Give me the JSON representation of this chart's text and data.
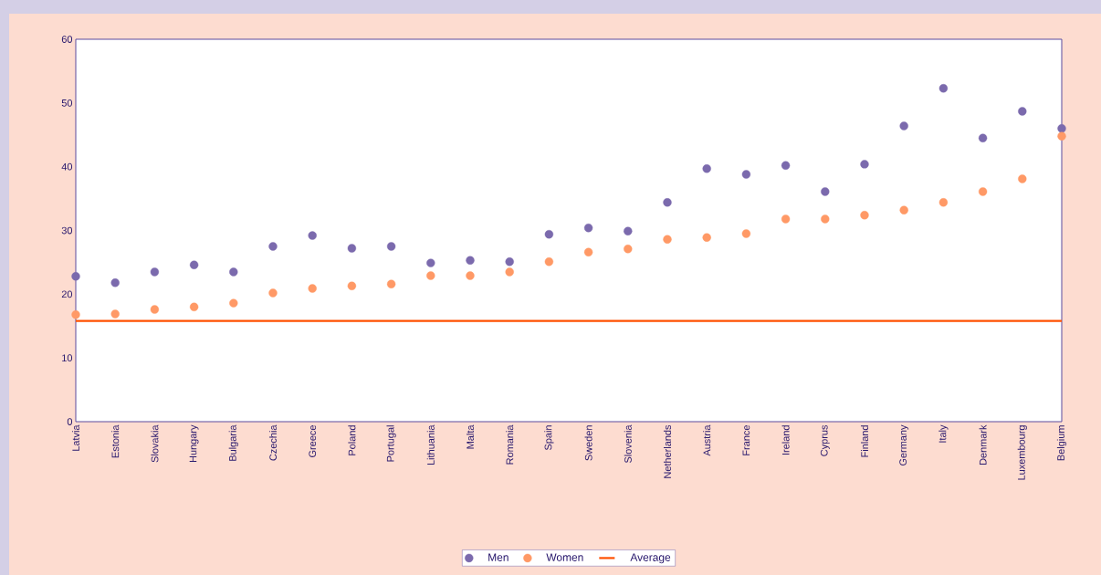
{
  "chart_data": {
    "type": "scatter",
    "categories": [
      "Latvia",
      "Estonia",
      "Slovakia",
      "Hungary",
      "Bulgaria",
      "Czechia",
      "Greece",
      "Poland",
      "Portugal",
      "Lithuania",
      "Malta",
      "Romania",
      "Spain",
      "Sweden",
      "Slovenia",
      "Netherlands",
      "Austria",
      "France",
      "Ireland",
      "Cyprus",
      "Finland",
      "Germany",
      "Italy",
      "Denmark",
      "Luxembourg",
      "Belgium"
    ],
    "series": [
      {
        "name": "Men",
        "color": "#7b6aad",
        "marker": "circle",
        "values": [
          22.8,
          21.8,
          23.5,
          24.6,
          23.5,
          27.5,
          29.2,
          27.2,
          27.5,
          24.9,
          25.3,
          25.1,
          29.4,
          30.4,
          29.9,
          34.4,
          39.7,
          38.8,
          40.2,
          36.1,
          40.4,
          46.4,
          52.3,
          44.5,
          48.7,
          46.0
        ]
      },
      {
        "name": "Women",
        "color": "#ff9966",
        "marker": "circle",
        "values": [
          16.8,
          16.9,
          17.6,
          18.0,
          18.6,
          20.2,
          20.9,
          21.3,
          21.6,
          22.9,
          22.9,
          23.5,
          25.1,
          26.6,
          27.1,
          28.6,
          28.9,
          29.5,
          31.8,
          31.8,
          32.4,
          33.2,
          34.4,
          36.1,
          38.1,
          44.8
        ]
      },
      {
        "name": "Average",
        "type": "line",
        "marker": "none",
        "color": "#ff5000",
        "values": [
          15.8,
          15.8,
          15.8,
          15.8,
          15.8,
          15.8,
          15.8,
          15.8,
          15.8,
          15.8,
          15.8,
          15.8,
          15.8,
          15.8,
          15.8,
          15.8,
          15.8,
          15.8,
          15.8,
          15.8,
          15.8,
          15.8,
          15.8,
          15.8,
          15.8,
          15.8
        ]
      }
    ],
    "ylim": [
      0,
      60
    ],
    "yticks": [
      0,
      10,
      20,
      30,
      40,
      50,
      60
    ],
    "legend": "bottom"
  }
}
